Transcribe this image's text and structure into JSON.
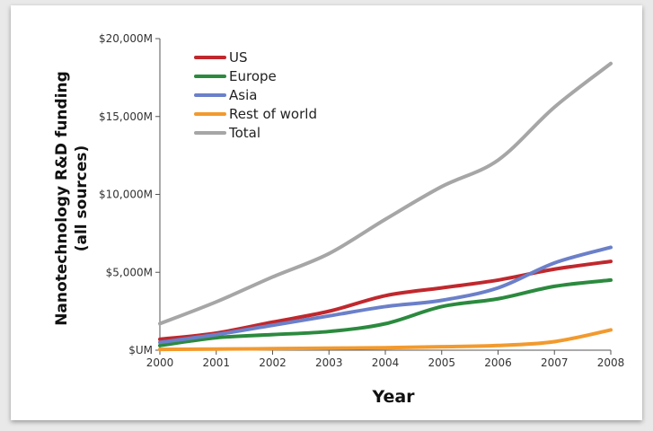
{
  "chart_data": {
    "type": "line",
    "title": "",
    "xlabel": "Year",
    "ylabel": "Nanotechnology R&D funding",
    "ylabel_line2": "(all sources)",
    "x": [
      2000,
      2001,
      2002,
      2003,
      2004,
      2005,
      2006,
      2007,
      2008
    ],
    "xlim": [
      2000,
      2008
    ],
    "ylim": [
      0,
      20000
    ],
    "y_ticks": [
      0,
      5000,
      10000,
      15000,
      20000
    ],
    "y_tick_labels": [
      "$UM",
      "$5,000M",
      "$10,000M",
      "$15,000M",
      "$20,000M"
    ],
    "x_tick_labels": [
      "2000",
      "2001",
      "2002",
      "2003",
      "2004",
      "2005",
      "2006",
      "2007",
      "2008"
    ],
    "grid": false,
    "legend_position": "top-left",
    "series": [
      {
        "name": "US",
        "color": "#c0282d",
        "values": [
          700,
          1100,
          1800,
          2500,
          3500,
          4000,
          4500,
          5200,
          5700
        ]
      },
      {
        "name": "Europe",
        "color": "#2b8a3e",
        "values": [
          300,
          800,
          1000,
          1200,
          1700,
          2800,
          3300,
          4100,
          4500
        ]
      },
      {
        "name": "Asia",
        "color": "#6b80c9",
        "values": [
          500,
          1000,
          1600,
          2200,
          2800,
          3200,
          4000,
          5600,
          6600
        ]
      },
      {
        "name": "Rest of world",
        "color": "#f29a2e",
        "values": [
          50,
          70,
          100,
          130,
          160,
          220,
          300,
          550,
          1300
        ]
      },
      {
        "name": "Total",
        "color": "#a6a6a6",
        "values": [
          1700,
          3100,
          4700,
          6200,
          8400,
          10500,
          12200,
          15600,
          18400
        ]
      }
    ]
  }
}
